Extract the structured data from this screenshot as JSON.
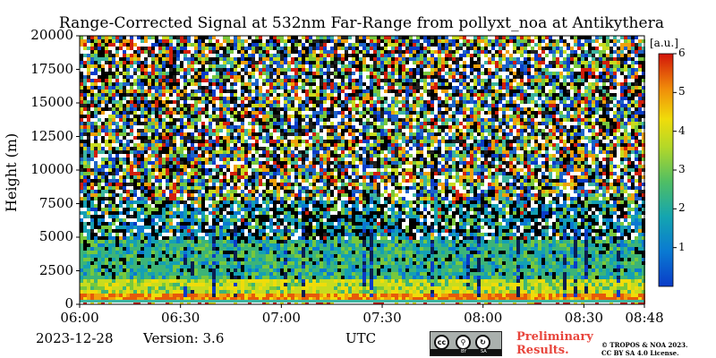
{
  "chart_data": {
    "type": "heatmap",
    "title": "Range-Corrected Signal at 532nm Far-Range from pollyxt_noa at Antikythera",
    "ylabel": "Height (m)",
    "xlabel": "UTC",
    "ylim": [
      0,
      20000
    ],
    "xlim": [
      "06:00",
      "08:48"
    ],
    "x_ticks": [
      "06:00",
      "06:30",
      "07:00",
      "07:30",
      "08:00",
      "08:30",
      "08:48"
    ],
    "y_ticks": [
      "0",
      "2500",
      "5000",
      "7500",
      "10000",
      "12500",
      "15000",
      "17500",
      "20000"
    ],
    "colorbar": {
      "unit": "[a.u.]",
      "range": [
        0,
        6
      ],
      "ticks": [
        "1",
        "2",
        "3",
        "4",
        "5",
        "6"
      ],
      "colormap": [
        "#0a3cc8",
        "#0a78d2",
        "#14a0b4",
        "#3cb478",
        "#78c83c",
        "#c8dc1e",
        "#f0dc0a",
        "#f0a00a",
        "#e65a0a",
        "#d21e0a"
      ]
    },
    "profile": [
      {
        "height_max": 600,
        "level": "5-6 (red/white near ground)"
      },
      {
        "height_max": 2000,
        "level": "3-4 (yellow-green aerosol layer)"
      },
      {
        "height_max": 5000,
        "level": "2-3 (cyan-green)"
      },
      {
        "height_max": 20000,
        "level": "noisy"
      }
    ]
  },
  "footer": {
    "date": "2023-12-28",
    "version": "Version: 3.6",
    "prelim": [
      "Preliminary",
      "Results."
    ],
    "license": [
      "© TROPOS & NOA 2023.",
      "CC BY SA 4.0 License."
    ],
    "cc_badge": [
      "cc",
      "BY",
      "SA"
    ]
  }
}
